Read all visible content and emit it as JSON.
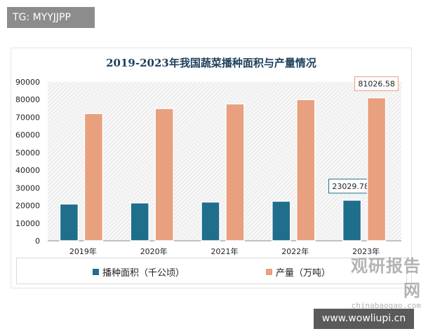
{
  "tag": "TG: MYYJJPP",
  "watermark_site": "www.wowliupi.cn",
  "watermark_logo": {
    "cn": "观研报告网",
    "en": "chinabaogao.com"
  },
  "chart_data": {
    "type": "bar",
    "title": "2019-2023年我国蔬菜播种面积与产量情况",
    "categories": [
      "2019年",
      "2020年",
      "2021年",
      "2022年",
      "2023年"
    ],
    "yticks": [
      "0",
      "10000",
      "20000",
      "30000",
      "40000",
      "50000",
      "60000",
      "70000",
      "80000",
      "90000"
    ],
    "ylim": [
      0,
      90000
    ],
    "legend_position": "bottom",
    "series": [
      {
        "name": "播种面积（千公顷）",
        "color": "#1f6e8c",
        "values": [
          20862.7,
          21485.5,
          21985.5,
          22434,
          23029.78
        ]
      },
      {
        "name": "产量（万吨）",
        "color": "#e8a07e",
        "values": [
          72102.6,
          74912.9,
          77548.8,
          79997.2,
          81026.58
        ]
      }
    ],
    "data_labels": [
      "23029.78",
      "81026.58"
    ]
  }
}
